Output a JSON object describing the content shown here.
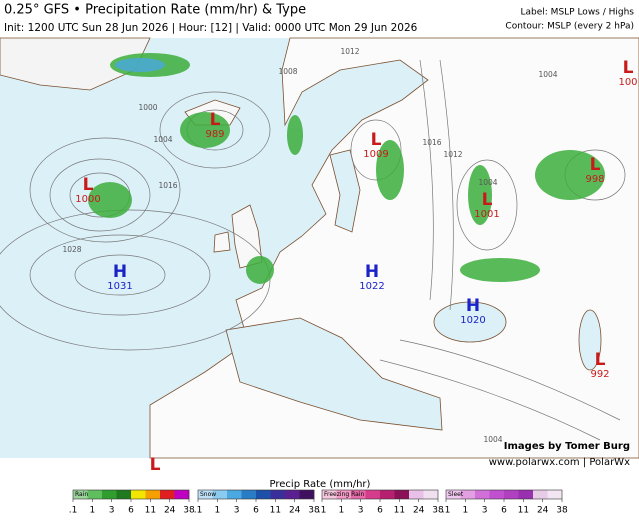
{
  "header": {
    "title": "0.25° GFS • Precipitation Rate (mm/hr) & Type",
    "subtitle": "Init: 1200 UTC Sun 28 Jun 2026 | Hour: [12] | Valid: 0000 UTC Mon 29 Jun 2026",
    "label_note": "Label: MSLP Lows / Highs",
    "contour_note": "Contour: MSLP (every 2 hPa)"
  },
  "pressure_centers": [
    {
      "label": "L",
      "value": 989
    },
    {
      "label": "L",
      "value": 1000
    },
    {
      "label": "H",
      "value": 1031
    },
    {
      "label": "L",
      "value": 1009
    },
    {
      "label": "L",
      "value": 1001
    },
    {
      "label": "L",
      "value": 998
    },
    {
      "label": "L",
      "value": 100
    },
    {
      "label": "H",
      "value": 1022
    },
    {
      "label": "H",
      "value": 1020
    },
    {
      "label": "L",
      "value": 992
    },
    {
      "label": "L"
    }
  ],
  "contour_labels": [
    1012,
    1008,
    1004,
    1000,
    1004,
    1016,
    1028,
    1016,
    1012,
    1004,
    1004
  ],
  "credits": [
    "Images by Tomer Burg",
    "www.polarwx.com | PolarWx"
  ],
  "legend": {
    "title": "Precip Rate (mm/hr)",
    "types": [
      {
        "name": "Rain",
        "ticks": [
          {
            "value": 0.1,
            "label": ".1"
          },
          1,
          3,
          6,
          11,
          24,
          38
        ]
      },
      {
        "name": "Snow",
        "ticks": [
          {
            "value": 0.1,
            "label": ".1"
          },
          1,
          3,
          6,
          11,
          24,
          38
        ]
      },
      {
        "name": "Freezing Rain",
        "ticks": [
          {
            "value": 0.1,
            "label": ".1"
          },
          1,
          3,
          6,
          11,
          24,
          38
        ]
      },
      {
        "name": "Sleet",
        "ticks": [
          {
            "value": 0.1,
            "label": ".1"
          },
          1,
          3,
          6,
          11,
          24,
          38
        ]
      }
    ]
  }
}
